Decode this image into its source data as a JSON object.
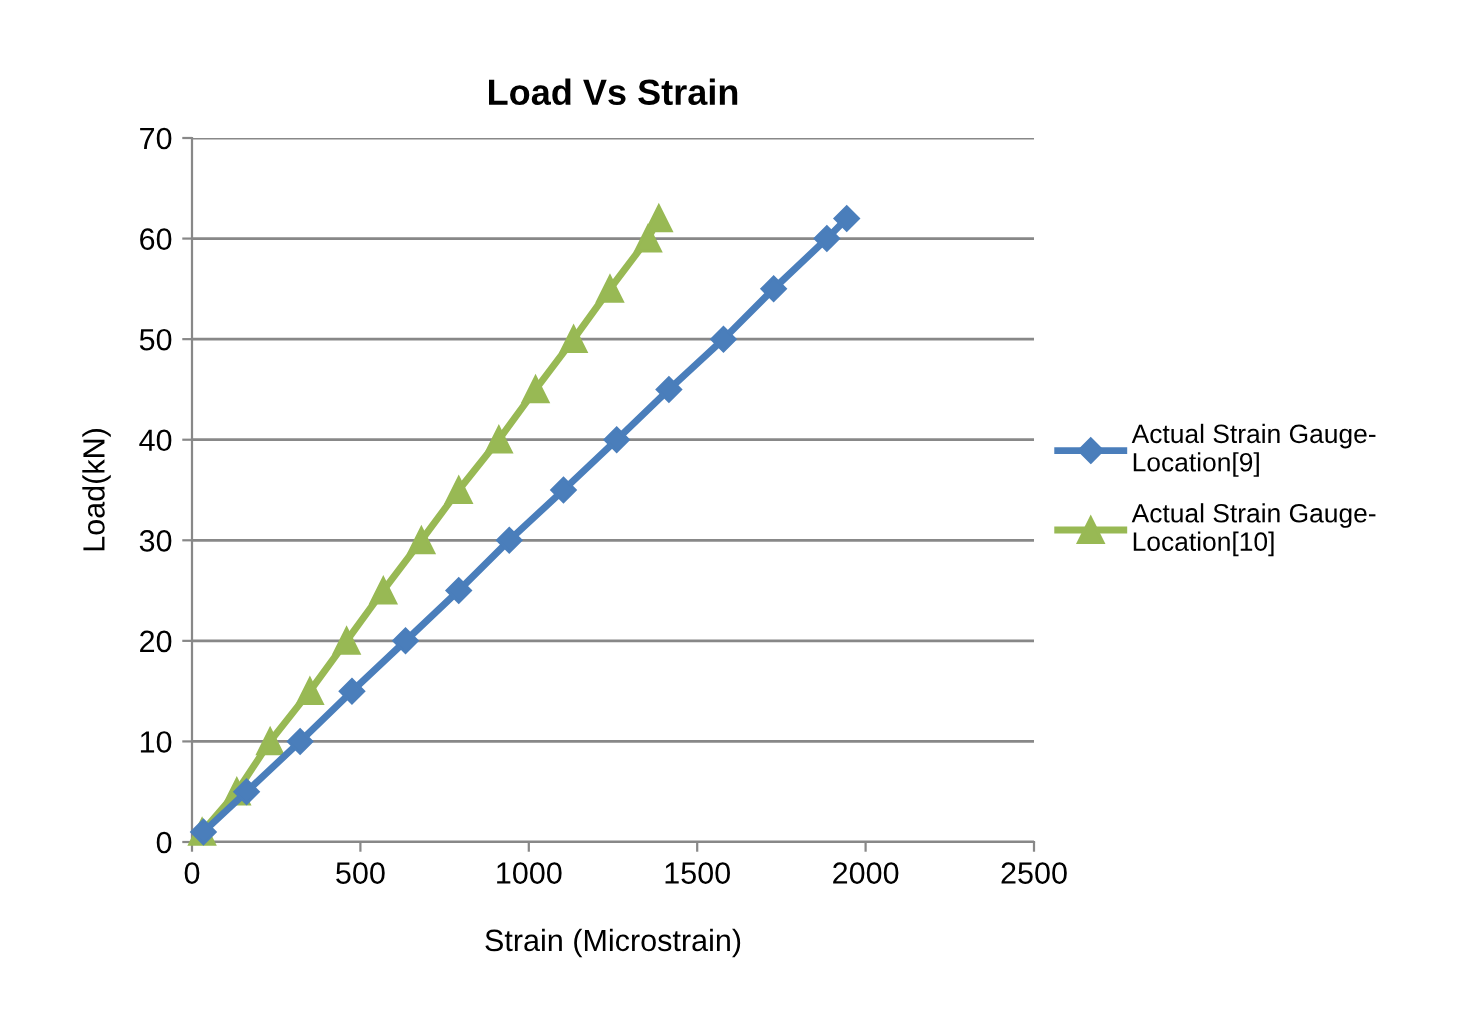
{
  "chart_data": {
    "type": "line",
    "title": "Load Vs Strain",
    "xlabel": "Strain (Microstrain)",
    "ylabel": "Load(kN)",
    "xlim": [
      0,
      2500
    ],
    "xticks": [
      0,
      500,
      1000,
      1500,
      2000,
      2500
    ],
    "ylim": [
      0,
      70
    ],
    "yticks": [
      0,
      10,
      20,
      30,
      40,
      50,
      60,
      70
    ],
    "grid": "y",
    "legend": "right",
    "series": [
      {
        "name": "Actual Strain Gauge-Location[9]",
        "color": "#4a7ebb",
        "marker": "diamond",
        "x": [
          34,
          162,
          321,
          475,
          634,
          792,
          942,
          1103,
          1261,
          1416,
          1578,
          1727,
          1885,
          1944
        ],
        "values": [
          1,
          5,
          10,
          15,
          20,
          25,
          30,
          35,
          40,
          45,
          50,
          55,
          60,
          62
        ]
      },
      {
        "name": "Actual Strain Gauge-Location[10]",
        "color": "#98b954",
        "marker": "triangle",
        "x": [
          30,
          133,
          232,
          350,
          459,
          568,
          681,
          792,
          911,
          1020,
          1133,
          1241,
          1354,
          1386
        ],
        "values": [
          1,
          5,
          10,
          15,
          20,
          25,
          30,
          35,
          40,
          45,
          50,
          55,
          60,
          62
        ]
      }
    ]
  }
}
